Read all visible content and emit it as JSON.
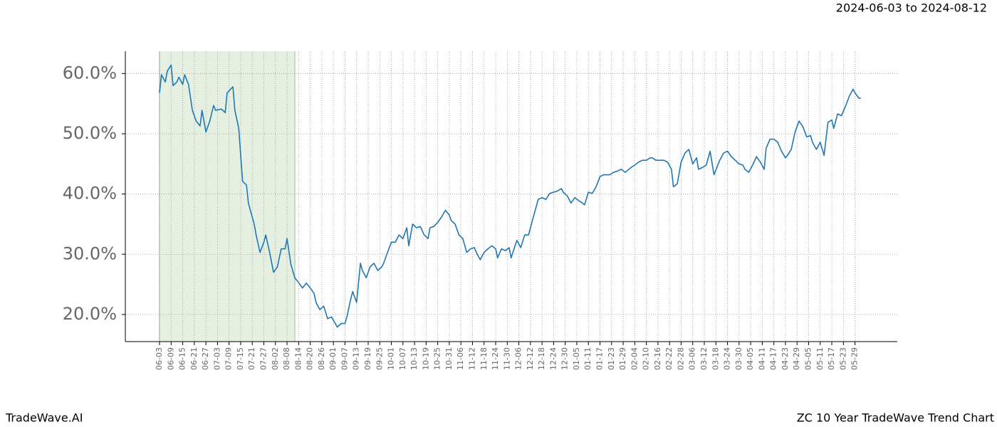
{
  "chart_data": {
    "type": "line",
    "title": "ZC 10 Year TradeWave Trend Chart",
    "subtitle": "2024-06-03 to 2024-08-12",
    "source": "TradeWave.AI",
    "shaded_range": [
      0,
      70
    ],
    "shaded_color": "#e5f0e3",
    "grid": true,
    "xlim": [
      -17.7,
      381.9
    ],
    "ylim": [
      15.5,
      63.7
    ],
    "yticks": [
      {
        "value": 20,
        "label": "20.0%"
      },
      {
        "value": 30,
        "label": "30.0%"
      },
      {
        "value": 40,
        "label": "40.0%"
      },
      {
        "value": 50,
        "label": "50.0%"
      },
      {
        "value": 60,
        "label": "60.0%"
      }
    ],
    "xticks": [
      {
        "value": 0,
        "label": "06-03"
      },
      {
        "value": 6,
        "label": "06-09"
      },
      {
        "value": 12,
        "label": "06-15"
      },
      {
        "value": 18,
        "label": "06-21"
      },
      {
        "value": 24,
        "label": "06-27"
      },
      {
        "value": 30,
        "label": "07-03"
      },
      {
        "value": 36,
        "label": "07-09"
      },
      {
        "value": 42,
        "label": "07-15"
      },
      {
        "value": 48,
        "label": "07-21"
      },
      {
        "value": 54,
        "label": "07-27"
      },
      {
        "value": 60,
        "label": "08-02"
      },
      {
        "value": 66,
        "label": "08-08"
      },
      {
        "value": 72,
        "label": "08-14"
      },
      {
        "value": 78,
        "label": "08-20"
      },
      {
        "value": 84,
        "label": "08-26"
      },
      {
        "value": 90,
        "label": "09-01"
      },
      {
        "value": 96,
        "label": "09-07"
      },
      {
        "value": 102,
        "label": "09-13"
      },
      {
        "value": 108,
        "label": "09-19"
      },
      {
        "value": 114,
        "label": "09-25"
      },
      {
        "value": 120,
        "label": "10-01"
      },
      {
        "value": 126,
        "label": "10-07"
      },
      {
        "value": 132,
        "label": "10-13"
      },
      {
        "value": 138,
        "label": "10-19"
      },
      {
        "value": 144,
        "label": "10-25"
      },
      {
        "value": 150,
        "label": "10-31"
      },
      {
        "value": 156,
        "label": "11-06"
      },
      {
        "value": 162,
        "label": "11-12"
      },
      {
        "value": 168,
        "label": "11-18"
      },
      {
        "value": 174,
        "label": "11-24"
      },
      {
        "value": 180,
        "label": "11-30"
      },
      {
        "value": 186,
        "label": "12-06"
      },
      {
        "value": 192,
        "label": "12-12"
      },
      {
        "value": 198,
        "label": "12-18"
      },
      {
        "value": 204,
        "label": "12-24"
      },
      {
        "value": 210,
        "label": "12-30"
      },
      {
        "value": 216,
        "label": "01-05"
      },
      {
        "value": 222,
        "label": "01-11"
      },
      {
        "value": 228,
        "label": "01-17"
      },
      {
        "value": 234,
        "label": "01-23"
      },
      {
        "value": 240,
        "label": "01-29"
      },
      {
        "value": 246,
        "label": "02-04"
      },
      {
        "value": 252,
        "label": "02-10"
      },
      {
        "value": 258,
        "label": "02-16"
      },
      {
        "value": 264,
        "label": "02-22"
      },
      {
        "value": 270,
        "label": "02-28"
      },
      {
        "value": 276,
        "label": "03-06"
      },
      {
        "value": 282,
        "label": "03-12"
      },
      {
        "value": 288,
        "label": "03-18"
      },
      {
        "value": 294,
        "label": "03-24"
      },
      {
        "value": 300,
        "label": "03-30"
      },
      {
        "value": 306,
        "label": "04-05"
      },
      {
        "value": 312,
        "label": "04-11"
      },
      {
        "value": 318,
        "label": "04-17"
      },
      {
        "value": 324,
        "label": "04-23"
      },
      {
        "value": 330,
        "label": "04-29"
      },
      {
        "value": 336,
        "label": "05-05"
      },
      {
        "value": 342,
        "label": "05-11"
      },
      {
        "value": 348,
        "label": "05-17"
      },
      {
        "value": 354,
        "label": "05-23"
      },
      {
        "value": 360,
        "label": "05-29"
      }
    ],
    "x": [
      0,
      1,
      3,
      4,
      6,
      7,
      9,
      10,
      12,
      13,
      15,
      17,
      19,
      21,
      22,
      24,
      26,
      28,
      29,
      32,
      34,
      35,
      38,
      39,
      41,
      43,
      45,
      46,
      47,
      49,
      50,
      52,
      54,
      55,
      57,
      59,
      61,
      63,
      65,
      66,
      68,
      70,
      72,
      74,
      76,
      78,
      80,
      81,
      83,
      85,
      87,
      89,
      91,
      92,
      94,
      96,
      97,
      99,
      100,
      102,
      104,
      105,
      107,
      109,
      111,
      113,
      115,
      116,
      118,
      120,
      122,
      124,
      126,
      128,
      129,
      131,
      133,
      135,
      137,
      139,
      140,
      142,
      144,
      146,
      148,
      150,
      151,
      153,
      155,
      157,
      159,
      161,
      163,
      164,
      166,
      168,
      170,
      172,
      174,
      175,
      177,
      179,
      181,
      182,
      184,
      185,
      187,
      189,
      191,
      193,
      195,
      196,
      198,
      200,
      202,
      204,
      206,
      208,
      209,
      211,
      213,
      215,
      217,
      219,
      220,
      222,
      224,
      226,
      228,
      230,
      231,
      233,
      235,
      237,
      239,
      241,
      243,
      244,
      246,
      248,
      250,
      252,
      254,
      255,
      257,
      259,
      261,
      263,
      265,
      266,
      268,
      270,
      272,
      274,
      276,
      278,
      279,
      281,
      283,
      285,
      287,
      289,
      290,
      292,
      294,
      296,
      298,
      300,
      302,
      303,
      305,
      307,
      309,
      311,
      313,
      314,
      316,
      318,
      320,
      322,
      324,
      325,
      327,
      329,
      331,
      333,
      335,
      337,
      338,
      340,
      342,
      344,
      346,
      348,
      349,
      351,
      353,
      355,
      357,
      359,
      360,
      362,
      363
    ],
    "series": [
      {
        "color": "#1f77b4",
        "values": [
          56.8,
          59.8,
          58.6,
          60.4,
          61.4,
          58.0,
          58.6,
          59.4,
          58.2,
          59.8,
          58.2,
          53.9,
          52.1,
          51.3,
          53.9,
          50.3,
          52.1,
          54.7,
          53.9,
          54.1,
          53.5,
          56.8,
          57.8,
          53.9,
          50.9,
          42.1,
          41.5,
          38.5,
          37.3,
          35.0,
          33.2,
          30.3,
          32.0,
          33.2,
          30.3,
          27.0,
          27.9,
          30.9,
          30.9,
          32.6,
          28.3,
          26.1,
          25.3,
          24.4,
          25.2,
          24.4,
          23.5,
          22.0,
          20.8,
          21.4,
          19.3,
          19.6,
          18.5,
          17.9,
          18.5,
          18.5,
          19.6,
          22.6,
          23.8,
          22.0,
          28.5,
          27.3,
          26.1,
          27.9,
          28.5,
          27.3,
          27.9,
          28.5,
          30.3,
          32.0,
          32.0,
          33.2,
          32.6,
          34.4,
          31.4,
          35.0,
          34.4,
          34.6,
          33.2,
          32.6,
          34.4,
          34.6,
          35.3,
          36.2,
          37.3,
          36.5,
          35.6,
          35.0,
          33.2,
          32.6,
          30.3,
          30.9,
          31.1,
          30.3,
          29.1,
          30.3,
          30.9,
          31.4,
          30.9,
          29.4,
          30.9,
          30.6,
          31.1,
          29.4,
          31.4,
          32.3,
          31.1,
          33.2,
          33.2,
          35.6,
          37.9,
          39.1,
          39.4,
          39.1,
          40.1,
          40.3,
          40.5,
          40.9,
          40.3,
          39.7,
          38.5,
          39.4,
          38.9,
          38.5,
          38.2,
          40.3,
          40.1,
          41.2,
          42.9,
          43.2,
          43.2,
          43.2,
          43.6,
          43.8,
          44.1,
          43.6,
          44.1,
          44.4,
          44.8,
          45.3,
          45.6,
          45.6,
          46.0,
          46.0,
          45.6,
          45.6,
          45.6,
          45.3,
          44.1,
          41.2,
          41.7,
          45.3,
          46.8,
          47.4,
          45.0,
          46.0,
          44.1,
          44.4,
          44.8,
          47.1,
          43.2,
          44.8,
          45.6,
          46.8,
          47.1,
          46.2,
          45.6,
          45.0,
          44.8,
          44.1,
          43.6,
          44.8,
          46.2,
          45.3,
          44.1,
          47.6,
          49.1,
          49.1,
          48.6,
          47.1,
          46.0,
          46.4,
          47.4,
          50.3,
          52.1,
          51.2,
          49.5,
          49.7,
          48.6,
          47.4,
          48.6,
          46.4,
          51.9,
          52.3,
          50.9,
          53.3,
          53.0,
          54.5,
          56.2,
          57.4,
          56.8,
          55.9,
          55.9
        ]
      }
    ]
  }
}
